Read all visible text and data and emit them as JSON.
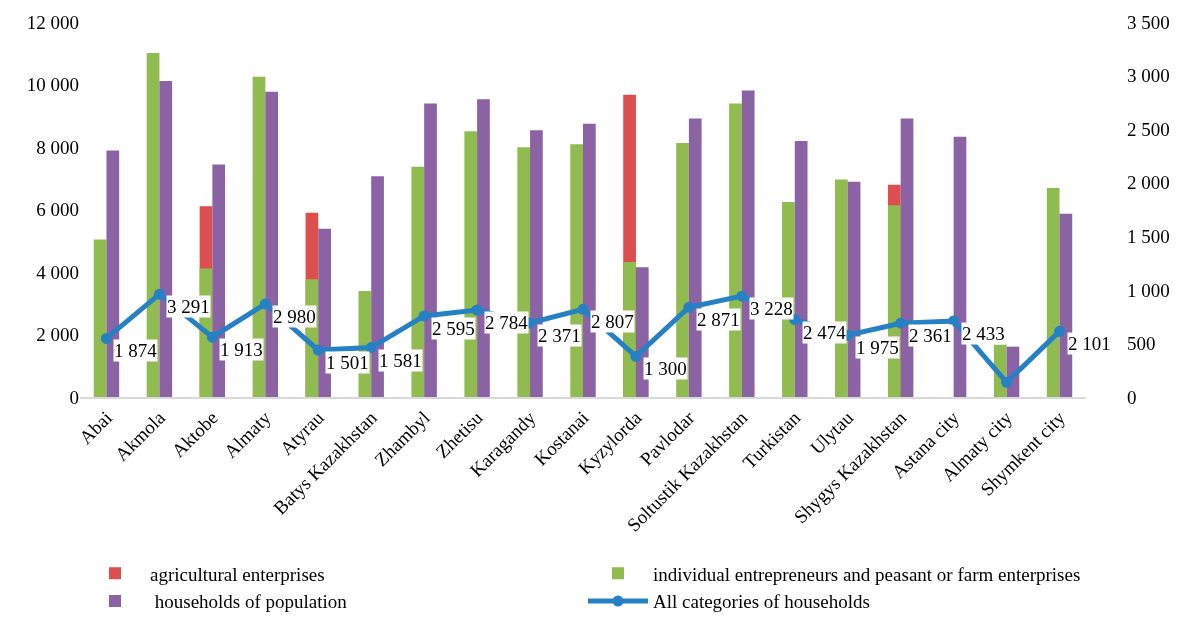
{
  "chart_data": {
    "type": "bar",
    "categories": [
      "Abai",
      "Akmola",
      "Aktobe",
      "Almaty",
      "Atyrau",
      "Batys Kazakhstan",
      "Zhambyl",
      "Zhetisu",
      "Karagandy",
      "Kostanai",
      "Kyzylorda",
      "Pavlodar",
      "Soltustik Kazakhstan",
      "Turkistan",
      "Ulytau",
      "Shygys Kazakhstan",
      "Astana city",
      "Almaty city",
      "Shymkent city"
    ],
    "series": [
      {
        "name": "agricultural enterprises",
        "color": "#dd4f4f",
        "axis": "y2",
        "values": [
          null,
          null,
          1780,
          null,
          1720,
          null,
          null,
          null,
          null,
          null,
          2820,
          null,
          null,
          null,
          null,
          1980,
          null,
          null,
          null
        ]
      },
      {
        "name": "individual entrepreneurs and peasant or farm enterprises",
        "color": "#8fbb4f",
        "axis": "y2",
        "values": [
          1470,
          3210,
          1200,
          2990,
          1100,
          990,
          2150,
          2480,
          2330,
          2360,
          1260,
          2370,
          2740,
          1820,
          2030,
          1790,
          null,
          490,
          1950
        ]
      },
      {
        "name": " households of population",
        "color": "#8b62a4",
        "axis": "y2",
        "values": [
          2300,
          2950,
          2170,
          2850,
          1570,
          2060,
          2740,
          2780,
          2490,
          2550,
          1210,
          2600,
          2860,
          2390,
          2010,
          2600,
          2430,
          470,
          1710
        ]
      },
      {
        "name": "All categories of households",
        "color": "#2581c4",
        "type": "line",
        "marker": "circle",
        "values": [
          1874,
          3291,
          1913,
          2980,
          1501,
          1581,
          2595,
          2784,
          2371,
          2807,
          1300,
          2871,
          3228,
          2474,
          1975,
          2361,
          2433,
          470,
          2101
        ],
        "value_labels": [
          "1 874",
          "3 291",
          "1 913",
          "2 980",
          "1 501",
          "1 581",
          "2 595",
          "2 784",
          "2 371",
          "2 807",
          "1 300",
          "2 871",
          "3 228",
          "2 474",
          "1 975",
          "2 361",
          "2 433",
          null,
          "2 101"
        ]
      }
    ],
    "ylim": [
      0,
      12000
    ],
    "yticks": [
      0,
      {
        "value": 2000,
        "label": "2 000"
      },
      {
        "value": 4000,
        "label": "4 000"
      },
      {
        "value": 6000,
        "label": "6 000"
      },
      {
        "value": 8000,
        "label": "8 000"
      },
      {
        "value": 10000,
        "label": "10 000"
      },
      {
        "value": 12000,
        "label": "12 000"
      }
    ],
    "y2lim": [
      0,
      3500
    ],
    "y2ticks": [
      0,
      500,
      {
        "value": 1000,
        "label": "1 000"
      },
      {
        "value": 1500,
        "label": "1 500"
      },
      {
        "value": 2000,
        "label": "2 000"
      },
      {
        "value": 2500,
        "label": "2 500"
      },
      {
        "value": 3000,
        "label": "3 000"
      },
      {
        "value": 3500,
        "label": "3 500"
      }
    ],
    "legend": "bottom"
  }
}
